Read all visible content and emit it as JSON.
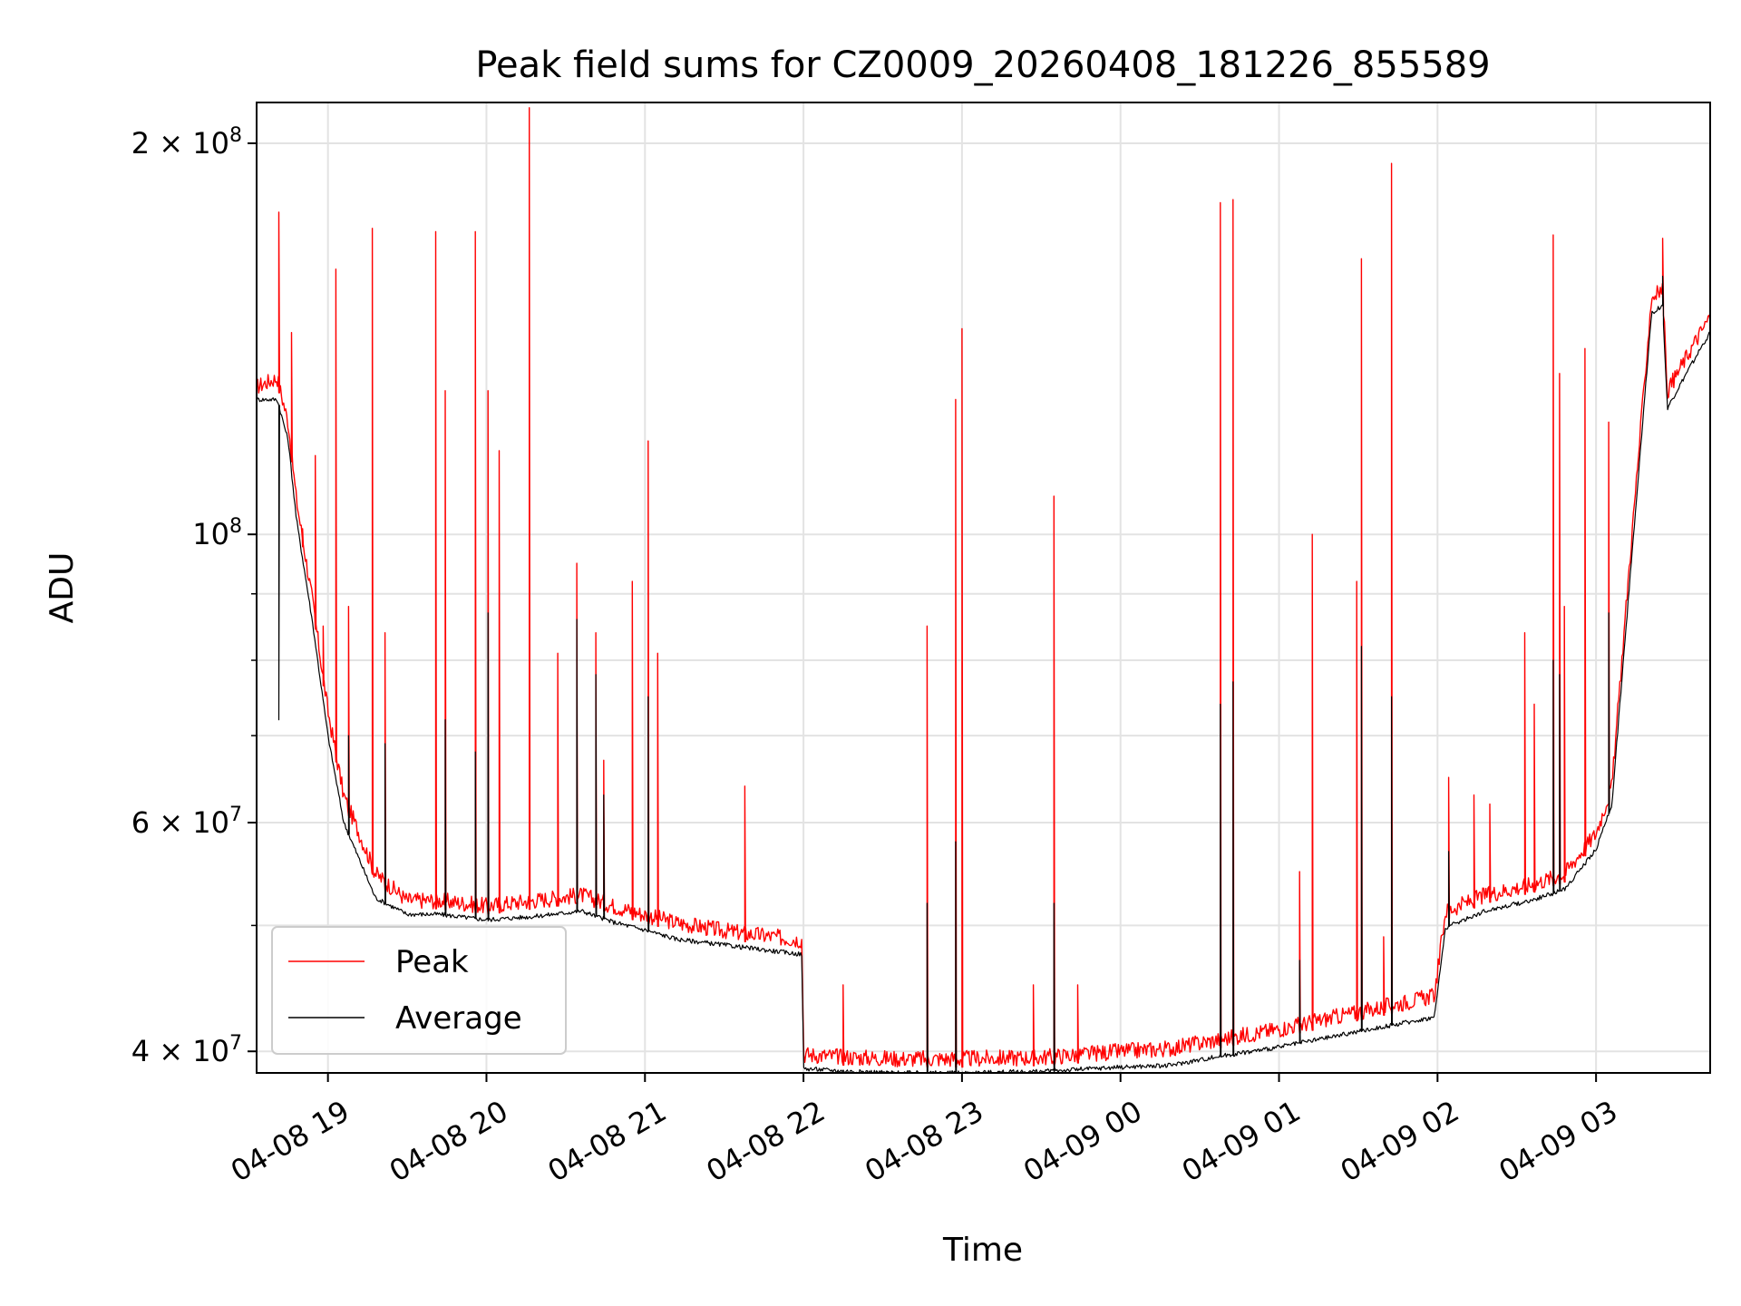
{
  "chart_data": {
    "type": "line",
    "title": "Peak field sums for CZ0009_20260408_181226_855589",
    "xlabel": "Time",
    "ylabel": "ADU",
    "yscale": "log",
    "ylim": [
      38500000,
      215000000
    ],
    "xlim_hours": [
      18.55,
      27.72
    ],
    "grid": true,
    "legend_position": "lower-left",
    "x_ticks": [
      {
        "label": "04-08 19",
        "hour": 19
      },
      {
        "label": "04-08 20",
        "hour": 20
      },
      {
        "label": "04-08 21",
        "hour": 21
      },
      {
        "label": "04-08 22",
        "hour": 22
      },
      {
        "label": "04-08 23",
        "hour": 23
      },
      {
        "label": "04-09 00",
        "hour": 24
      },
      {
        "label": "04-09 01",
        "hour": 25
      },
      {
        "label": "04-09 02",
        "hour": 26
      },
      {
        "label": "04-09 03",
        "hour": 27
      }
    ],
    "y_major_ticks": [
      {
        "value": 40000000,
        "mantissa": "4",
        "base": "10",
        "exp": "7",
        "times": "×"
      },
      {
        "value": 60000000,
        "mantissa": "6",
        "base": "10",
        "exp": "7",
        "times": "×"
      },
      {
        "value": 100000000,
        "mantissa": "",
        "base": "10",
        "exp": "8",
        "times": ""
      },
      {
        "value": 200000000,
        "mantissa": "2",
        "base": "10",
        "exp": "8",
        "times": "×"
      }
    ],
    "y_minor_ticks": [
      50000000,
      70000000,
      80000000,
      90000000
    ],
    "series": [
      {
        "name": "Peak",
        "color": "#ff0000",
        "baseline_hours": [
          18.55,
          18.68,
          18.75,
          18.8,
          18.9,
          19.0,
          19.1,
          19.3,
          19.5,
          19.7,
          20.0,
          20.3,
          20.6,
          20.8,
          21.0,
          21.2,
          21.5,
          21.8,
          21.99,
          22.0,
          22.3,
          22.6,
          23.0,
          23.5,
          24.0,
          24.3,
          24.6,
          25.0,
          25.4,
          25.8,
          25.98,
          26.05,
          26.3,
          26.6,
          26.8,
          27.0,
          27.1,
          27.2,
          27.35,
          27.42,
          27.45,
          27.6,
          27.72
        ],
        "baseline_values": [
          128000000,
          130000000,
          120000000,
          105000000,
          88000000,
          72000000,
          62000000,
          54000000,
          51500000,
          51500000,
          51000000,
          51500000,
          52000000,
          51000000,
          50200000,
          49500000,
          48800000,
          48300000,
          48000000,
          39200000,
          39000000,
          38900000,
          38900000,
          39000000,
          39400000,
          39600000,
          40200000,
          41000000,
          42000000,
          43000000,
          43500000,
          50500000,
          52000000,
          53000000,
          54000000,
          58000000,
          63000000,
          90000000,
          150000000,
          152000000,
          127000000,
          137000000,
          145000000
        ],
        "spike_hours": [
          18.69,
          18.77,
          18.84,
          18.92,
          18.97,
          19.05,
          19.13,
          19.28,
          19.36,
          19.68,
          19.74,
          19.93,
          20.01,
          20.08,
          20.27,
          20.45,
          20.57,
          20.69,
          20.74,
          20.92,
          21.02,
          21.08,
          21.63,
          22.25,
          22.78,
          22.96,
          23.0,
          23.45,
          23.58,
          23.73,
          24.63,
          24.71,
          25.13,
          25.21,
          25.49,
          25.52,
          25.66,
          25.71,
          26.07,
          26.23,
          26.33,
          26.55,
          26.61,
          26.73,
          26.77,
          26.8,
          26.93,
          27.08,
          27.42
        ],
        "spike_values": [
          177000000,
          143000000,
          101000000,
          115000000,
          85000000,
          160000000,
          88000000,
          172000000,
          84000000,
          171000000,
          129000000,
          171000000,
          129000000,
          116000000,
          213000000,
          81000000,
          95000000,
          84000000,
          67000000,
          92000000,
          118000000,
          81000000,
          64000000,
          45000000,
          85000000,
          127000000,
          144000000,
          45000000,
          107000000,
          45000000,
          180000000,
          181000000,
          55000000,
          100000000,
          92000000,
          163000000,
          49000000,
          193000000,
          65000000,
          63000000,
          62000000,
          84000000,
          74000000,
          170000000,
          133000000,
          88000000,
          139000000,
          122000000,
          169000000
        ]
      },
      {
        "name": "Average",
        "color": "#000000",
        "baseline_hours": [
          18.55,
          18.68,
          18.75,
          18.8,
          18.9,
          19.0,
          19.1,
          19.3,
          19.5,
          19.7,
          20.0,
          20.3,
          20.6,
          20.8,
          21.0,
          21.2,
          21.5,
          21.8,
          21.99,
          22.0,
          22.3,
          22.6,
          23.0,
          23.5,
          24.0,
          24.3,
          24.6,
          25.0,
          25.4,
          25.8,
          25.98,
          26.05,
          26.3,
          26.6,
          26.8,
          27.0,
          27.1,
          27.2,
          27.35,
          27.42,
          27.45,
          27.6,
          27.72
        ],
        "baseline_values": [
          127000000,
          127000000,
          118000000,
          103000000,
          86000000,
          70000000,
          60000000,
          52500000,
          51000000,
          51000000,
          50500000,
          50800000,
          51300000,
          50300000,
          49600000,
          48800000,
          48300000,
          47800000,
          47500000,
          38800000,
          38600000,
          38500000,
          38500000,
          38600000,
          38900000,
          39000000,
          39600000,
          40300000,
          41200000,
          42100000,
          42500000,
          49800000,
          51300000,
          52300000,
          53300000,
          57200000,
          62000000,
          88000000,
          148000000,
          150000000,
          125000000,
          135000000,
          143000000
        ],
        "spike_hours": [
          18.69,
          19.13,
          19.36,
          19.74,
          19.93,
          20.01,
          20.57,
          20.69,
          20.74,
          21.02,
          22.78,
          22.96,
          23.58,
          24.63,
          24.71,
          25.13,
          25.52,
          25.71,
          26.07,
          26.73,
          26.77,
          27.08,
          27.42
        ],
        "spike_values": [
          72000000,
          70000000,
          69000000,
          72000000,
          68000000,
          87000000,
          86000000,
          78000000,
          63000000,
          75000000,
          52000000,
          58000000,
          52000000,
          74000000,
          77000000,
          47000000,
          82000000,
          75000000,
          57000000,
          80000000,
          78000000,
          87000000,
          158000000
        ]
      }
    ]
  }
}
